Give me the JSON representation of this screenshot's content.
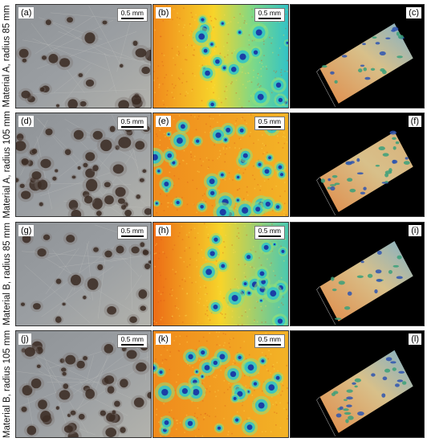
{
  "figure": {
    "rows": [
      {
        "label": "Material A, radius 85 mm",
        "panels": [
          {
            "tag": "(a)",
            "scale": "0.5 mm"
          },
          {
            "tag": "(b)",
            "scale": "0.5 mm"
          },
          {
            "tag": "(c)"
          }
        ]
      },
      {
        "label": "Material A, radius 105 mm",
        "panels": [
          {
            "tag": "(d)",
            "scale": "0.5 mm"
          },
          {
            "tag": "(e)",
            "scale": "0.5 mm"
          },
          {
            "tag": "(f)"
          }
        ]
      },
      {
        "label": "Material B, radius 85 mm",
        "panels": [
          {
            "tag": "(g)",
            "scale": "0.5 mm"
          },
          {
            "tag": "(h)",
            "scale": "0.5 mm"
          },
          {
            "tag": "(i)"
          }
        ]
      },
      {
        "label": "Material B, radius 105 mm",
        "panels": [
          {
            "tag": "(j)",
            "scale": "0.5 mm"
          },
          {
            "tag": "(k)",
            "scale": "0.5 mm"
          },
          {
            "tag": "(l)"
          }
        ]
      }
    ],
    "colors": {
      "photo_base": "#9a9ea2",
      "pit_dark": "#3a2a22",
      "heat_hot": "#f08a1c",
      "heat_mid": "#f7d42a",
      "heat_cool": "#33c3c6",
      "heat_deep": "#1b3ea6",
      "render_bg": "#000000"
    }
  }
}
